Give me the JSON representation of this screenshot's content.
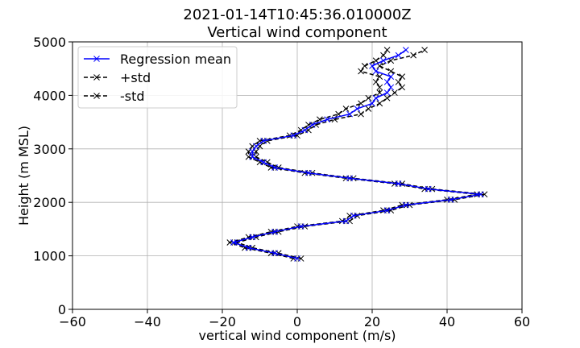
{
  "chart_data": {
    "type": "line",
    "title": "2021-01-14T10:45:36.010000Z",
    "subtitle": "Vertical wind component",
    "xlabel": "vertical wind component (m/s)",
    "ylabel": "Height (m MSL)",
    "xlim": [
      -60,
      60
    ],
    "ylim": [
      0,
      5000
    ],
    "xticks": [
      -60,
      -40,
      -20,
      0,
      20,
      40,
      60
    ],
    "yticks": [
      0,
      1000,
      2000,
      3000,
      4000,
      5000
    ],
    "xtick_labels": [
      "−60",
      "−40",
      "−20",
      "0",
      "20",
      "40",
      "60"
    ],
    "ytick_labels": [
      "0",
      "1000",
      "2000",
      "3000",
      "4000",
      "5000"
    ],
    "grid": true,
    "legend_position": "top-left",
    "heights": [
      950,
      1050,
      1150,
      1250,
      1350,
      1450,
      1550,
      1650,
      1750,
      1850,
      1950,
      2050,
      2150,
      2250,
      2350,
      2450,
      2550,
      2650,
      2750,
      2850,
      2950,
      3050,
      3150,
      3250,
      3350,
      3450,
      3550,
      3650,
      3750,
      3850,
      3950,
      4050,
      4150,
      4250,
      4350,
      4450,
      4550,
      4650,
      4750,
      4850
    ],
    "series": [
      {
        "name": "Regression mean",
        "color": "#0000ff",
        "dash": "solid",
        "marker": "x",
        "values": [
          0,
          -6,
          -13,
          -17,
          -12,
          -6,
          1,
          13,
          15,
          24,
          29,
          41,
          49,
          35,
          27,
          14,
          3,
          -6,
          -9,
          -12,
          -12,
          -11,
          -9,
          -1,
          2,
          4,
          8,
          14,
          16,
          20,
          21,
          24,
          25,
          24,
          25,
          21,
          20,
          23,
          27,
          29
        ]
      },
      {
        "name": "+std",
        "color": "#000000",
        "dash": "dashed",
        "marker": "x",
        "values": [
          1,
          -5,
          -12,
          -16,
          -11,
          -5,
          2,
          14,
          16,
          25,
          30,
          42,
          50,
          36,
          28,
          15,
          4,
          -5,
          -8,
          -11,
          -11,
          -10,
          -8,
          0,
          3,
          5,
          10,
          17,
          19,
          22,
          24,
          26,
          28,
          27,
          28,
          25,
          22,
          25,
          31,
          34
        ]
      },
      {
        "name": "-std",
        "color": "#000000",
        "dash": "dashed",
        "marker": "x",
        "values": [
          -1,
          -7,
          -14,
          -18,
          -13,
          -7,
          0,
          12,
          14,
          23,
          28,
          40,
          48,
          34,
          26,
          13,
          2,
          -7,
          -10,
          -13,
          -13,
          -12,
          -10,
          -2,
          1,
          3,
          6,
          11,
          13,
          17,
          19,
          22,
          22,
          21,
          22,
          17,
          18,
          21,
          23,
          24
        ]
      }
    ]
  }
}
